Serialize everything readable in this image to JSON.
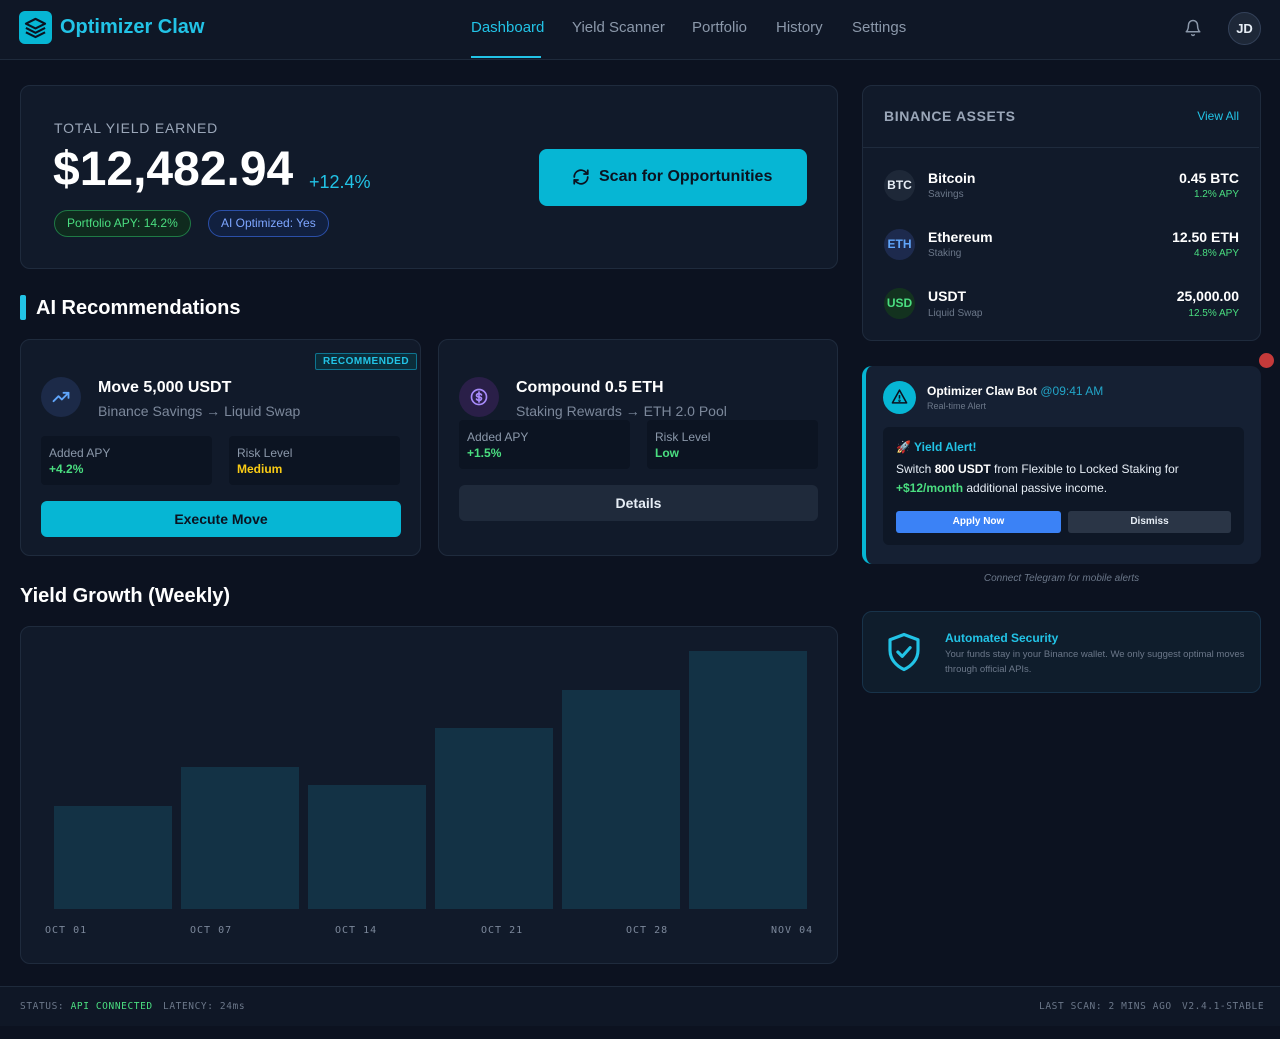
{
  "brand": {
    "name": "Optimizer Claw"
  },
  "nav": {
    "items": [
      "Dashboard",
      "Yield Scanner",
      "Portfolio",
      "History",
      "Settings"
    ],
    "active": "Dashboard"
  },
  "user": {
    "initials": "JD"
  },
  "hero": {
    "label": "TOTAL YIELD EARNED",
    "value": "$12,482.94",
    "change": "+12.4%",
    "pill_apy": "Portfolio APY: 14.2%",
    "pill_ai": "AI Optimized: Yes",
    "scan_button": "Scan for Opportunities"
  },
  "recommendations": {
    "heading": "AI Recommendations",
    "cards": [
      {
        "badge": "RECOMMENDED",
        "title": "Move 5,000 USDT",
        "subtitle": "Binance Savings → Liquid Swap",
        "apy_label": "Added APY",
        "apy_value": "+4.2%",
        "risk_label": "Risk Level",
        "risk_value": "Medium",
        "action": "Execute Move",
        "icon": "trending-up-icon"
      },
      {
        "title": "Compound 0.5 ETH",
        "subtitle": "Staking Rewards → ETH 2.0 Pool",
        "apy_label": "Added APY",
        "apy_value": "+1.5%",
        "risk_label": "Risk Level",
        "risk_value": "Low",
        "action": "Details",
        "icon": "dollar-coin-icon"
      }
    ]
  },
  "chart": {
    "heading": "Yield Growth (Weekly)"
  },
  "chart_data": {
    "type": "bar",
    "title": "Yield Growth (Weekly)",
    "categories": [
      "OCT 01",
      "OCT 07",
      "OCT 14",
      "OCT 21",
      "OCT 28",
      "NOV 04"
    ],
    "x_tick_labels": [
      "OCT 01",
      "OCT 07",
      "OCT 14",
      "OCT 21",
      "OCT 28",
      "NOV 04"
    ],
    "values": [
      40,
      55,
      48,
      70,
      85,
      100
    ],
    "ylim": [
      0,
      100
    ],
    "grid": false,
    "legend": "none",
    "bar_color": "#133245"
  },
  "assets": {
    "title": "BINANCE ASSETS",
    "view_all": "View All",
    "items": [
      {
        "symbol": "BTC",
        "name": "Bitcoin",
        "type": "Savings",
        "amount": "0.45 BTC",
        "apy": "1.2% APY"
      },
      {
        "symbol": "ETH",
        "name": "Ethereum",
        "type": "Staking",
        "amount": "12.50 ETH",
        "apy": "4.8% APY"
      },
      {
        "symbol": "USD",
        "name": "USDT",
        "type": "Liquid Swap",
        "amount": "25,000.00",
        "apy": "12.5% APY"
      }
    ]
  },
  "bot": {
    "name": "Optimizer Claw Bot",
    "time": "@09:41 AM",
    "subtitle": "Real-time Alert",
    "alert_title": "🚀 Yield Alert!",
    "alert_pre": "Switch ",
    "alert_amount": "800 USDT",
    "alert_mid": " from Flexible to Locked Staking for ",
    "alert_gain": "+$12/month",
    "alert_post": " additional passive income.",
    "apply": "Apply Now",
    "dismiss": "Dismiss"
  },
  "telegram_note": "Connect Telegram for mobile alerts",
  "security": {
    "title": "Automated Security",
    "description": "Your funds stay in your Binance wallet. We only suggest optimal moves through official APIs."
  },
  "footer": {
    "status_label": "STATUS:",
    "status_value": "API CONNECTED",
    "latency": "LATENCY: 24ms",
    "last_scan": "LAST SCAN: 2 MINS AGO",
    "version": "V2.4.1-STABLE"
  },
  "colors": {
    "accent": "#06b6d4",
    "positive": "#4ade80",
    "warning": "#facc15",
    "background": "#0c1220"
  }
}
